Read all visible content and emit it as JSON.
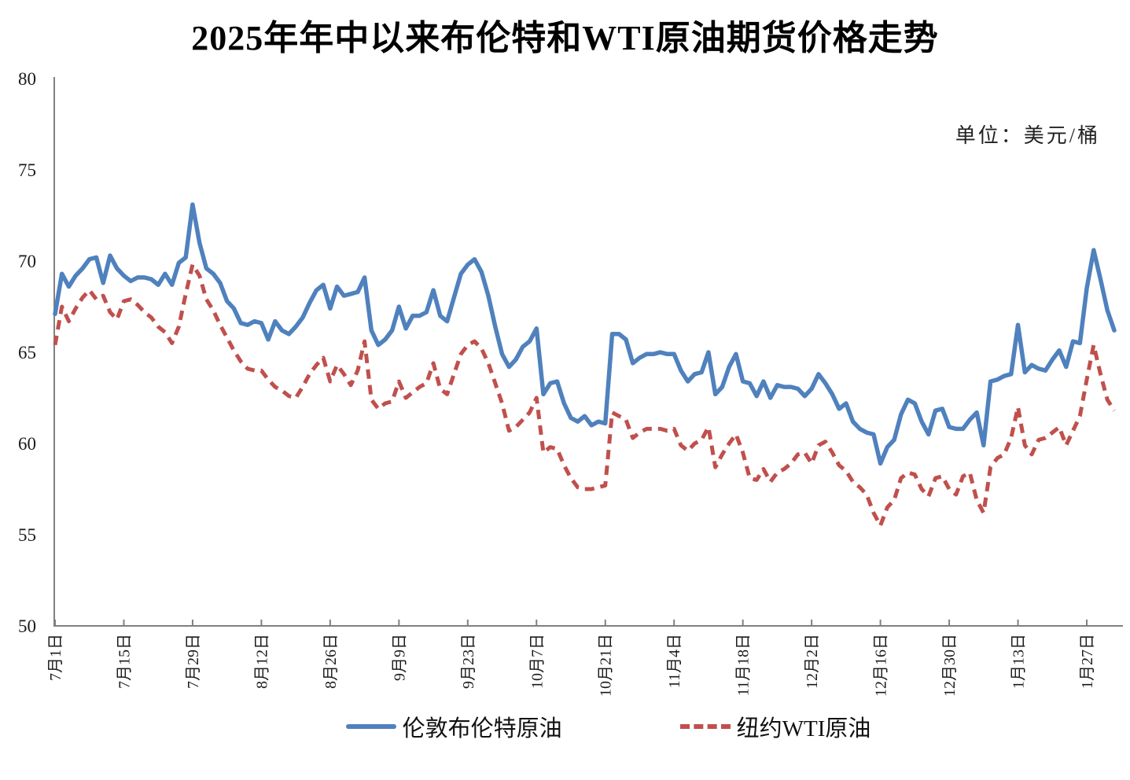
{
  "title": "2025年年中以来布伦特和WTI原油期货价格走势",
  "unit_label": "单位：美元/桶",
  "colors": {
    "brent": "#4F81BD",
    "wti": "#C0504D",
    "axis": "#808080",
    "text": "#1a1a1a"
  },
  "chart_data": {
    "type": "line",
    "title": "2025年年中以来布伦特和WTI原油期货价格走势",
    "unit": "美元/桶",
    "grid": false,
    "legend_position": "bottom",
    "y_axis": {
      "min": 50,
      "max": 80,
      "step": 5,
      "ticks": [
        50,
        55,
        60,
        65,
        70,
        75,
        80
      ]
    },
    "x_tick_every": 10,
    "x_tick_labels": [
      "7月1日",
      "7月15日",
      "7月29日",
      "8月12日",
      "8月26日",
      "9月9日",
      "9月23日",
      "10月7日",
      "10月21日",
      "11月4日",
      "11月18日",
      "12月2日",
      "12月16日",
      "12月30日",
      "1月13日",
      "1月27日"
    ],
    "series": [
      {
        "name": "伦敦布伦特原油",
        "color": "#4F81BD",
        "style": "solid",
        "values": [
          67.1,
          69.3,
          68.6,
          69.2,
          69.6,
          70.1,
          70.2,
          68.8,
          70.3,
          69.6,
          69.2,
          68.9,
          69.1,
          69.1,
          69.0,
          68.7,
          69.3,
          68.7,
          69.9,
          70.2,
          73.1,
          71.0,
          69.6,
          69.3,
          68.8,
          67.8,
          67.4,
          66.6,
          66.5,
          66.7,
          66.6,
          65.7,
          66.7,
          66.2,
          66.0,
          66.4,
          66.9,
          67.7,
          68.4,
          68.7,
          67.4,
          68.6,
          68.1,
          68.2,
          68.3,
          69.1,
          66.2,
          65.4,
          65.7,
          66.2,
          67.5,
          66.3,
          67.0,
          67.0,
          67.2,
          68.4,
          67.0,
          66.7,
          68.0,
          69.3,
          69.8,
          70.1,
          69.4,
          68.1,
          66.4,
          64.9,
          64.2,
          64.6,
          65.3,
          65.6,
          66.3,
          62.7,
          63.3,
          63.4,
          62.2,
          61.4,
          61.2,
          61.5,
          61.0,
          61.2,
          61.1,
          66.0,
          66.0,
          65.7,
          64.4,
          64.7,
          64.9,
          64.9,
          65.0,
          64.9,
          64.9,
          64.0,
          63.4,
          63.8,
          63.9,
          65.0,
          62.7,
          63.1,
          64.2,
          64.9,
          63.4,
          63.3,
          62.6,
          63.4,
          62.5,
          63.2,
          63.1,
          63.1,
          63.0,
          62.6,
          63.0,
          63.8,
          63.3,
          62.7,
          61.9,
          62.2,
          61.2,
          60.8,
          60.6,
          60.5,
          58.9,
          59.8,
          60.2,
          61.6,
          62.4,
          62.2,
          61.2,
          60.5,
          61.8,
          61.9,
          60.9,
          60.8,
          60.8,
          61.3,
          61.7,
          59.9,
          63.4,
          63.5,
          63.7,
          63.8,
          66.5,
          63.9,
          64.3,
          64.1,
          64.0,
          64.6,
          65.1,
          64.2,
          65.6,
          65.5,
          68.5,
          70.6,
          69.0,
          67.3,
          66.2
        ]
      },
      {
        "name": "纽约WTI原油",
        "color": "#C0504D",
        "style": "dashed",
        "values": [
          65.4,
          67.5,
          66.7,
          67.4,
          68.0,
          68.4,
          67.9,
          68.1,
          67.2,
          66.8,
          67.8,
          67.9,
          67.6,
          67.2,
          66.9,
          66.4,
          66.1,
          65.5,
          66.4,
          68.2,
          69.8,
          69.2,
          67.9,
          67.3,
          66.5,
          65.8,
          65.1,
          64.5,
          64.1,
          64.0,
          64.0,
          63.5,
          63.1,
          62.9,
          62.6,
          62.5,
          63.1,
          63.8,
          64.3,
          64.7,
          63.4,
          64.3,
          63.8,
          63.2,
          64.0,
          65.6,
          62.4,
          61.9,
          62.2,
          62.3,
          63.4,
          62.5,
          62.8,
          63.1,
          63.3,
          64.4,
          63.0,
          62.7,
          63.8,
          64.9,
          65.4,
          65.6,
          65.2,
          64.4,
          63.3,
          62.2,
          60.7,
          60.9,
          61.3,
          61.7,
          62.5,
          59.5,
          59.8,
          59.7,
          58.8,
          58.1,
          57.6,
          57.5,
          57.5,
          57.6,
          57.7,
          61.7,
          61.5,
          61.3,
          60.3,
          60.6,
          60.8,
          60.8,
          60.8,
          60.7,
          60.8,
          59.9,
          59.6,
          60.0,
          60.2,
          60.9,
          58.7,
          59.4,
          60.0,
          60.5,
          59.5,
          58.1,
          58.0,
          58.6,
          57.9,
          58.4,
          58.6,
          58.9,
          59.4,
          59.5,
          58.9,
          59.9,
          60.1,
          59.5,
          58.8,
          58.5,
          57.9,
          57.6,
          57.2,
          56.2,
          55.5,
          56.5,
          56.9,
          58.1,
          58.4,
          58.3,
          57.5,
          57.1,
          58.1,
          58.2,
          57.5,
          57.2,
          58.2,
          58.4,
          56.9,
          56.2,
          58.7,
          59.2,
          59.4,
          60.3,
          62.0,
          59.9,
          59.4,
          60.2,
          60.3,
          60.6,
          60.9,
          59.9,
          60.7,
          61.5,
          63.5,
          65.4,
          63.8,
          62.4,
          61.8
        ]
      }
    ]
  }
}
